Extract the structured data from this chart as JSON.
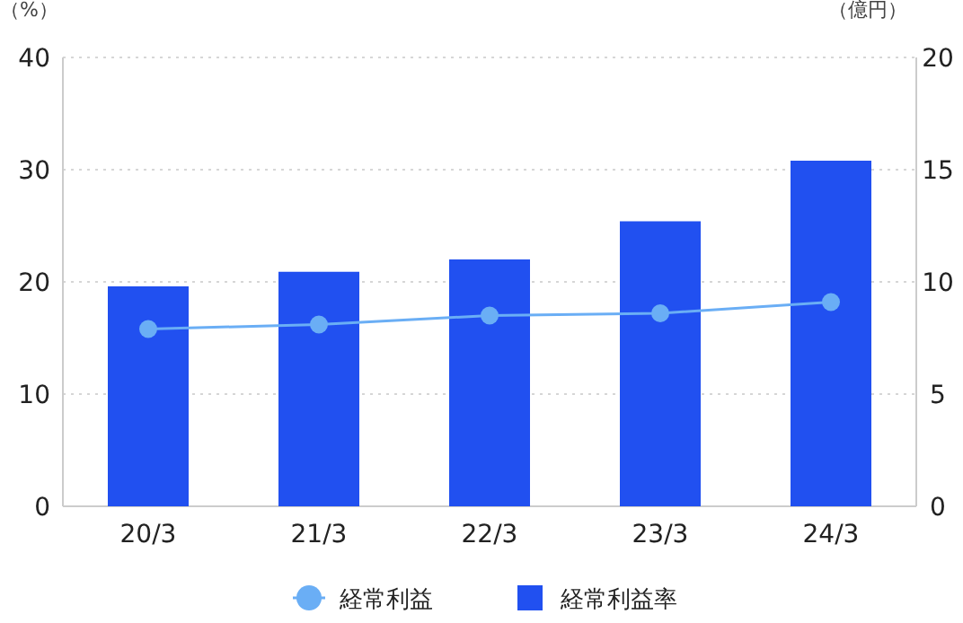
{
  "chart_data": {
    "type": "bar",
    "categories": [
      "20/3",
      "21/3",
      "22/3",
      "23/3",
      "24/3"
    ],
    "series": [
      {
        "name": "経常利益",
        "type": "line",
        "axis": "y2",
        "color": "#6aaef5",
        "values": [
          7.9,
          8.1,
          8.5,
          8.6,
          9.1
        ]
      },
      {
        "name": "経常利益率",
        "color": "#2150f0",
        "values": [
          19.6,
          20.9,
          22.0,
          25.4,
          30.8
        ]
      }
    ],
    "ylabel": "（%）",
    "y2label": "（億円）",
    "ylim": [
      0,
      40
    ],
    "yticks": [
      0,
      10,
      20,
      30,
      40
    ],
    "y2lim": [
      0,
      20
    ],
    "y2ticks": [
      0,
      5,
      10,
      15,
      20
    ],
    "grid": "y",
    "legend": "bottom",
    "marker": "circle"
  }
}
